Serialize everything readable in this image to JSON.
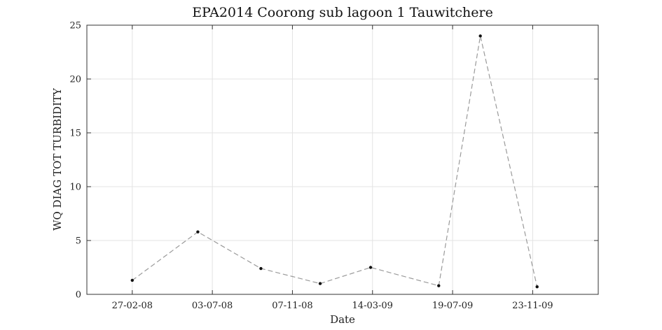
{
  "chart_data": {
    "type": "line",
    "title": "EPA2014 Coorong sub lagoon 1 Tauwitchere",
    "xlabel": "Date",
    "ylabel": "WQ DIAG TOT TURBIDITY",
    "xlim": [
      "2007-12-17",
      "2010-03-07"
    ],
    "ylim": [
      0,
      25
    ],
    "x_ticks": [
      {
        "date": "2008-02-27",
        "label": "27-02-08"
      },
      {
        "date": "2008-07-03",
        "label": "03-07-08"
      },
      {
        "date": "2008-11-07",
        "label": "07-11-08"
      },
      {
        "date": "2009-03-14",
        "label": "14-03-09"
      },
      {
        "date": "2009-07-19",
        "label": "19-07-09"
      },
      {
        "date": "2009-11-23",
        "label": "23-11-09"
      }
    ],
    "y_ticks": [
      0,
      5,
      10,
      15,
      20,
      25
    ],
    "grid": true,
    "series": [
      {
        "color": "#9a9a9a",
        "marker_color": "#111111",
        "x": [
          "2008-02-27",
          "2008-06-10",
          "2008-09-18",
          "2008-12-21",
          "2009-03-11",
          "2009-06-27",
          "2009-09-01",
          "2009-11-30"
        ],
        "y": [
          1.3,
          5.8,
          2.4,
          1.0,
          2.5,
          0.8,
          24.0,
          0.7
        ]
      }
    ]
  }
}
